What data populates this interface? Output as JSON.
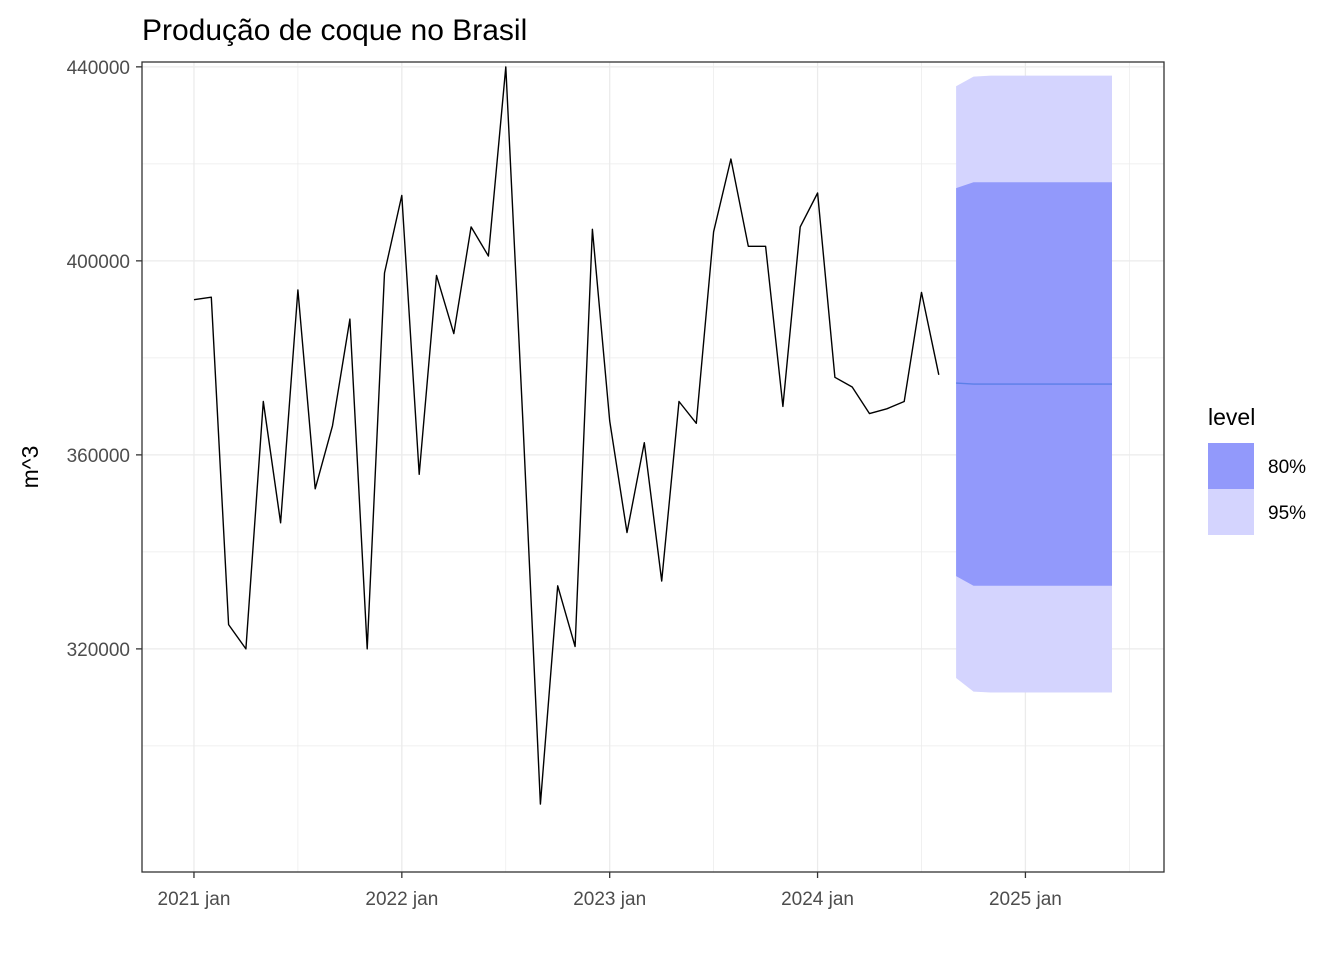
{
  "chart_data": {
    "type": "line",
    "title": "Produção de coque no Brasil",
    "xlabel": "",
    "ylabel": "m^3",
    "xlim": [
      "2020-10",
      "2025-09"
    ],
    "ylim": [
      274000,
      441000
    ],
    "y_ticks": [
      320000,
      360000,
      400000,
      440000
    ],
    "y_tick_labels": [
      "320000",
      "360000",
      "400000",
      "440000"
    ],
    "x_ticks": [
      "2021-01",
      "2022-01",
      "2023-01",
      "2024-01",
      "2025-01"
    ],
    "x_tick_labels": [
      "2021 jan",
      "2022 jan",
      "2023 jan",
      "2024 jan",
      "2025 jan"
    ],
    "grid": true,
    "legend_position": "right",
    "series": [
      {
        "x": [
          "2021-01",
          "2021-02",
          "2021-03",
          "2021-04",
          "2021-05",
          "2021-06",
          "2021-07",
          "2021-08",
          "2021-09",
          "2021-10",
          "2021-11",
          "2021-12",
          "2022-01",
          "2022-02",
          "2022-03",
          "2022-04",
          "2022-05",
          "2022-06",
          "2022-07",
          "2022-08",
          "2022-09",
          "2022-10",
          "2022-11",
          "2022-12",
          "2023-01",
          "2023-02",
          "2023-03",
          "2023-04",
          "2023-05",
          "2023-06",
          "2023-07",
          "2023-08",
          "2023-09",
          "2023-10",
          "2023-11",
          "2023-12",
          "2024-01",
          "2024-02",
          "2024-03",
          "2024-04",
          "2024-05",
          "2024-06",
          "2024-07",
          "2024-08"
        ],
        "values": [
          392000,
          392500,
          325000,
          320000,
          371000,
          346000,
          394000,
          353000,
          366000,
          388000,
          320000,
          397500,
          413500,
          356000,
          397000,
          385000,
          407000,
          401000,
          440000,
          366000,
          288000,
          333000,
          320500,
          406500,
          367000,
          344000,
          362500,
          334000,
          371000,
          366500,
          406000,
          421000,
          403000,
          403000,
          370000,
          407000,
          414000,
          376000,
          374000,
          368500,
          369500,
          371000,
          393500,
          376500
        ],
        "color": "#000000"
      }
    ],
    "forecast": {
      "x": [
        "2024-09",
        "2024-10",
        "2024-11",
        "2024-12",
        "2025-01",
        "2025-02",
        "2025-03",
        "2025-04",
        "2025-05",
        "2025-06"
      ],
      "mean": [
        374800,
        374600,
        374600,
        374600,
        374600,
        374600,
        374600,
        374600,
        374600,
        374600
      ],
      "lo80": [
        335000,
        333000,
        333000,
        333000,
        333000,
        333000,
        333000,
        333000,
        333000,
        333000
      ],
      "hi80": [
        415000,
        416200,
        416200,
        416200,
        416200,
        416200,
        416200,
        416200,
        416200,
        416200
      ],
      "lo95": [
        314000,
        311200,
        311000,
        311000,
        311000,
        311000,
        311000,
        311000,
        311000,
        311000
      ],
      "hi95": [
        436000,
        438000,
        438200,
        438200,
        438200,
        438200,
        438200,
        438200,
        438200,
        438200
      ],
      "mean_color": "#5b7fe8"
    },
    "legend": {
      "title": "level",
      "entries": [
        {
          "label": "80%",
          "color": "#9299fb"
        },
        {
          "label": "95%",
          "color": "#d4d4fe"
        }
      ]
    }
  }
}
